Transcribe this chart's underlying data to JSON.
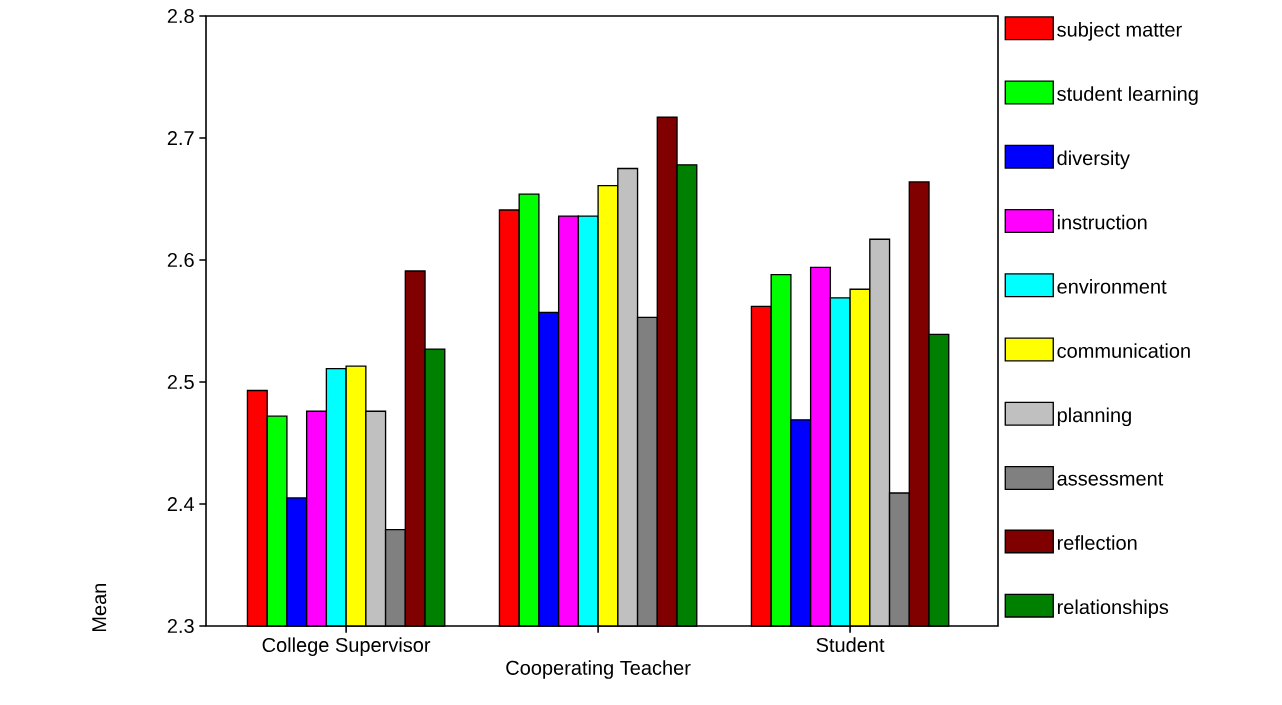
{
  "chart_data": {
    "type": "bar",
    "ylabel": "Mean",
    "categories": [
      "College Supervisor",
      "Cooperating Teacher",
      "Student"
    ],
    "series": [
      {
        "name": "subject matter",
        "color": "#ff0000",
        "values": [
          2.493,
          2.641,
          2.562
        ]
      },
      {
        "name": "student learning",
        "color": "#00ff00",
        "values": [
          2.472,
          2.654,
          2.588
        ]
      },
      {
        "name": "diversity",
        "color": "#0000ff",
        "values": [
          2.405,
          2.557,
          2.469
        ]
      },
      {
        "name": "instruction",
        "color": "#ff00ff",
        "values": [
          2.476,
          2.636,
          2.594
        ]
      },
      {
        "name": "environment",
        "color": "#00ffff",
        "values": [
          2.511,
          2.636,
          2.569
        ]
      },
      {
        "name": "communication",
        "color": "#ffff00",
        "values": [
          2.513,
          2.661,
          2.576
        ]
      },
      {
        "name": "planning",
        "color": "#c0c0c0",
        "values": [
          2.476,
          2.675,
          2.617
        ]
      },
      {
        "name": "assessment",
        "color": "#808080",
        "values": [
          2.379,
          2.553,
          2.409
        ]
      },
      {
        "name": "reflection",
        "color": "#800000",
        "values": [
          2.591,
          2.717,
          2.664
        ]
      },
      {
        "name": "relationships",
        "color": "#008000",
        "values": [
          2.527,
          2.678,
          2.539
        ]
      }
    ],
    "ylim": [
      2.3,
      2.8
    ],
    "yticks": [
      2.3,
      2.4,
      2.5,
      2.6,
      2.7,
      2.8
    ],
    "legend": "right",
    "grid": false
  }
}
